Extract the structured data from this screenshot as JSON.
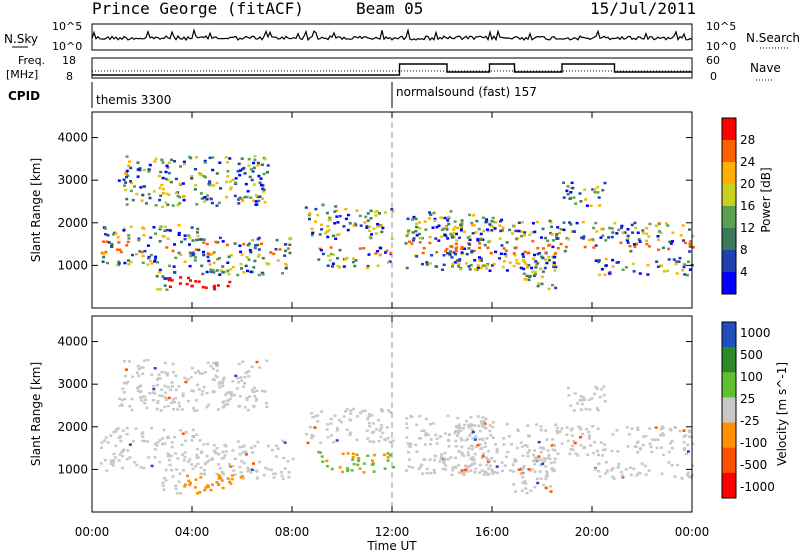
{
  "header": {
    "station": "Prince George (fitACF)",
    "beam": "Beam 05",
    "date": "15/Jul/2011"
  },
  "strip": {
    "nsky_label": "N.Sky",
    "nsearch_label": "N.Search",
    "freq_label_line1": "Freq.",
    "freq_label_line2": "[MHz]",
    "nave_label": "Nave",
    "cpid_label": "CPID",
    "noise_ticks_left": [
      "10^5",
      "10^0"
    ],
    "noise_ticks_right": [
      "10^5",
      "10^0"
    ],
    "freq_ticks": [
      "18",
      "8"
    ],
    "nave_ticks": [
      "60",
      "0"
    ],
    "cpid_segments": [
      {
        "label": "themis 3300",
        "start_hour": 0
      },
      {
        "label": "normalsound (fast) 157",
        "start_hour": 12
      }
    ]
  },
  "colors": {
    "power_scale": [
      "#0000ff",
      "#2040b0",
      "#3a7a5a",
      "#5aa050",
      "#c8d020",
      "#ffb000",
      "#ff6000",
      "#ff0000"
    ],
    "velocity_scale": [
      "#2050c0",
      "#2a8a2a",
      "#60c030",
      "#c8c8c8",
      "#ff9000",
      "#ff5000",
      "#ff0000"
    ]
  },
  "chart_data": [
    {
      "type": "heatmap",
      "name": "power-panel",
      "ylabel": "Slant Range [km]",
      "yticks": [
        "1000",
        "2000",
        "3000",
        "4000"
      ],
      "ylim": [
        0,
        4600
      ],
      "xlim_hours": [
        0,
        24
      ],
      "colorbar_label": "Power [dB]",
      "colorbar_ticks": [
        "4",
        "8",
        "12",
        "16",
        "20",
        "24",
        "28"
      ]
    },
    {
      "type": "heatmap",
      "name": "velocity-panel",
      "ylabel": "Slant Range [km]",
      "yticks": [
        "1000",
        "2000",
        "3000",
        "4000"
      ],
      "ylim": [
        0,
        4600
      ],
      "xlim_hours": [
        0,
        24
      ],
      "colorbar_label": "Velocity [m s^-1]",
      "colorbar_ticks": [
        "1000",
        "500",
        "100",
        "25",
        "-25",
        "-100",
        "-500",
        "-1000"
      ],
      "xlabel": "Time UT",
      "xticks": [
        "00:00",
        "04:00",
        "08:00",
        "12:00",
        "16:00",
        "20:00",
        "00:00"
      ]
    }
  ]
}
